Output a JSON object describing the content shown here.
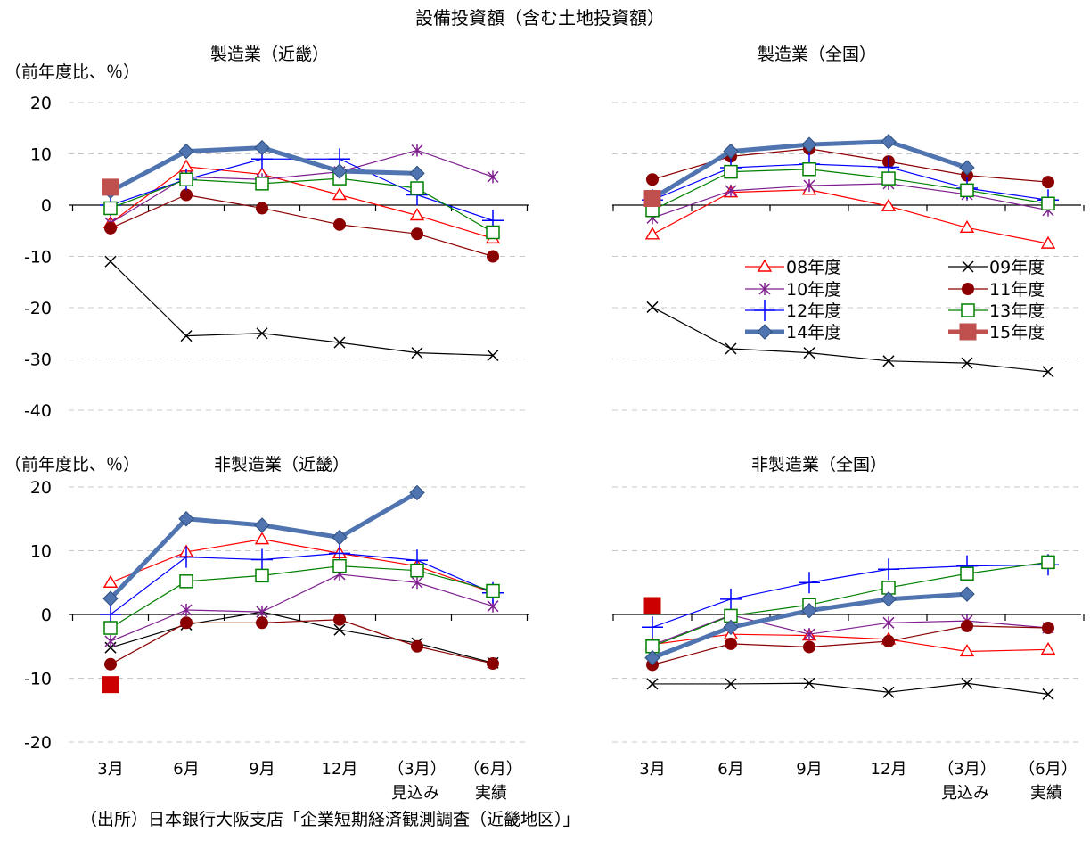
{
  "page": {
    "main_title": "設備投資額（含む土地投資額）",
    "source_note": "（出所）日本銀行大阪支店「企業短期経済観測調査（近畿地区）」",
    "y_unit_label": "（前年度比、％）"
  },
  "categories": [
    "3月",
    "6月",
    "9月",
    "12月",
    "（3月）",
    "（6月）"
  ],
  "category_sublabels": [
    "",
    "",
    "",
    "",
    "見込み",
    "実績"
  ],
  "series_styles": [
    {
      "name": "08年度",
      "color": "#ff0000",
      "marker": "triangle",
      "width": 1.2
    },
    {
      "name": "09年度",
      "color": "#000000",
      "marker": "x",
      "width": 1.2
    },
    {
      "name": "10年度",
      "color": "#7f1f8f",
      "marker": "star",
      "width": 1.2
    },
    {
      "name": "11年度",
      "color": "#8b0000",
      "marker": "circle",
      "width": 1.2
    },
    {
      "name": "12年度",
      "color": "#0000ff",
      "marker": "plus",
      "width": 1.2
    },
    {
      "name": "13年度",
      "color": "#008000",
      "marker": "square-open",
      "width": 1.2
    },
    {
      "name": "14年度",
      "color": "#4f74b0",
      "marker": "diamond",
      "width": 5
    },
    {
      "name": "15年度",
      "color": "#c0504d",
      "marker": "square-filled",
      "width": 5
    }
  ],
  "chart_data": [
    {
      "type": "line",
      "title": "製造業（近畿）",
      "ylim": [
        -40,
        20
      ],
      "yticks": [
        20,
        10,
        0,
        -10,
        -20,
        -30,
        -40
      ],
      "ytick_labels": [
        "20",
        "10",
        "0",
        "-10",
        "-20",
        "-30",
        "-40"
      ],
      "show_y_unit": true,
      "show_y_ticks": true,
      "show_legend": false,
      "categories": [
        "3月",
        "6月",
        "9月",
        "12月",
        "（3月）",
        "（6月）"
      ],
      "series": [
        {
          "name": "08年度",
          "values": [
            -3.5,
            7.5,
            6,
            2,
            -2,
            -6.5
          ]
        },
        {
          "name": "09年度",
          "values": [
            -11,
            -25.5,
            -25,
            -26.8,
            -28.8,
            -29.3
          ]
        },
        {
          "name": "10年度",
          "values": [
            -3.5,
            5.5,
            5,
            6.5,
            10.7,
            5.5
          ]
        },
        {
          "name": "11年度",
          "values": [
            -4.5,
            2,
            -0.6,
            -3.8,
            -5.6,
            -10
          ]
        },
        {
          "name": "12年度",
          "values": [
            0,
            5,
            9,
            9,
            2,
            -3
          ]
        },
        {
          "name": "13年度",
          "values": [
            -0.6,
            5,
            4.2,
            5.2,
            3.3,
            -5.3
          ]
        },
        {
          "name": "14年度",
          "values": [
            2.7,
            10.5,
            11.2,
            6.6,
            6.2,
            null
          ]
        },
        {
          "name": "15年度",
          "values": [
            3.5,
            null,
            null,
            null,
            null,
            null
          ]
        }
      ]
    },
    {
      "type": "line",
      "title": "製造業（全国）",
      "ylim": [
        -40,
        20
      ],
      "yticks": [
        20,
        10,
        0,
        -10,
        -20,
        -30,
        -40
      ],
      "ytick_labels": [],
      "show_y_unit": false,
      "show_y_ticks": false,
      "show_legend": true,
      "categories": [
        "3月",
        "6月",
        "9月",
        "12月",
        "（3月）",
        "（6月）"
      ],
      "series": [
        {
          "name": "08年度",
          "values": [
            -5.7,
            2.5,
            3,
            -0.2,
            -4.4,
            -7.5
          ]
        },
        {
          "name": "09年度",
          "values": [
            -19.9,
            -28,
            -28.8,
            -30.4,
            -30.8,
            -32.5
          ]
        },
        {
          "name": "10年度",
          "values": [
            -2.5,
            2.8,
            3.8,
            4.2,
            2.1,
            -1
          ]
        },
        {
          "name": "11年度",
          "values": [
            5,
            9.5,
            11,
            8.5,
            5.8,
            4.5
          ]
        },
        {
          "name": "12年度",
          "values": [
            1,
            7.3,
            8,
            7.4,
            3.3,
            1
          ]
        },
        {
          "name": "13年度",
          "values": [
            -1,
            6.5,
            7,
            5.2,
            2.9,
            0.3
          ]
        },
        {
          "name": "14年度",
          "values": [
            1.3,
            10.5,
            11.8,
            12.4,
            7.3,
            null
          ]
        },
        {
          "name": "15年度",
          "values": [
            1.3,
            null,
            null,
            null,
            null,
            null
          ]
        }
      ]
    },
    {
      "type": "line",
      "title": "非製造業（近畿）",
      "ylim": [
        -20,
        20
      ],
      "yticks": [
        20,
        10,
        0,
        -10,
        -20
      ],
      "ytick_labels": [
        "20",
        "10",
        "0",
        "-10",
        "-20"
      ],
      "show_y_unit": true,
      "show_y_ticks": true,
      "show_legend": false,
      "categories": [
        "3月",
        "6月",
        "9月",
        "12月",
        "（3月）",
        "（6月）"
      ],
      "series": [
        {
          "name": "08年度",
          "values": [
            5,
            9.8,
            11.8,
            9.6,
            7.6,
            3.4
          ]
        },
        {
          "name": "09年度",
          "values": [
            -5.2,
            -1.6,
            0.4,
            -2.4,
            -4.5,
            -7.6
          ]
        },
        {
          "name": "10年度",
          "values": [
            -4.2,
            0.7,
            0.4,
            6.3,
            5,
            1.3
          ]
        },
        {
          "name": "11年度",
          "values": [
            -7.8,
            -1.3,
            -1.3,
            -0.8,
            -5,
            -7.7
          ]
        },
        {
          "name": "12年度",
          "values": [
            0,
            9,
            8.6,
            9.6,
            8.5,
            3.4
          ]
        },
        {
          "name": "13年度",
          "values": [
            -2.1,
            5.2,
            6.1,
            7.6,
            6.9,
            3.7
          ]
        },
        {
          "name": "14年度",
          "values": [
            2.5,
            15,
            14,
            12.1,
            19.1,
            null
          ]
        },
        {
          "name": "15年度",
          "values": [
            -11,
            null,
            null,
            null,
            null,
            null
          ]
        }
      ]
    },
    {
      "type": "line",
      "title": "非製造業（全国）",
      "ylim": [
        -20,
        20
      ],
      "yticks": [
        20,
        10,
        0,
        -10,
        -20
      ],
      "ytick_labels": [],
      "show_y_unit": false,
      "show_y_ticks": false,
      "show_legend": false,
      "categories": [
        "3月",
        "6月",
        "9月",
        "12月",
        "（3月）",
        "（6月）"
      ],
      "series": [
        {
          "name": "08年度",
          "values": [
            -4.7,
            -3.1,
            -3.3,
            -3.9,
            -5.8,
            -5.5
          ]
        },
        {
          "name": "09年度",
          "values": [
            -10.9,
            -10.9,
            -10.8,
            -12.2,
            -10.8,
            -12.5
          ]
        },
        {
          "name": "10年度",
          "values": [
            -4.8,
            -0.1,
            -3.1,
            -1.3,
            -1,
            -2.1
          ]
        },
        {
          "name": "11年度",
          "values": [
            -7.9,
            -4.6,
            -5.1,
            -4.2,
            -1.8,
            -2.1
          ]
        },
        {
          "name": "12年度",
          "values": [
            -2,
            2.4,
            5,
            7.1,
            7.6,
            7.8
          ]
        },
        {
          "name": "13年度",
          "values": [
            -5,
            -0.2,
            1.5,
            4.2,
            6.4,
            8.2
          ]
        },
        {
          "name": "14年度",
          "values": [
            -6.8,
            -2,
            0.6,
            2.4,
            3.2,
            null
          ]
        },
        {
          "name": "15年度",
          "values": [
            1.4,
            null,
            null,
            null,
            null,
            null
          ]
        }
      ]
    }
  ],
  "legend_order": [
    "08年度",
    "09年度",
    "10年度",
    "11年度",
    "12年度",
    "13年度",
    "14年度",
    "15年度"
  ]
}
